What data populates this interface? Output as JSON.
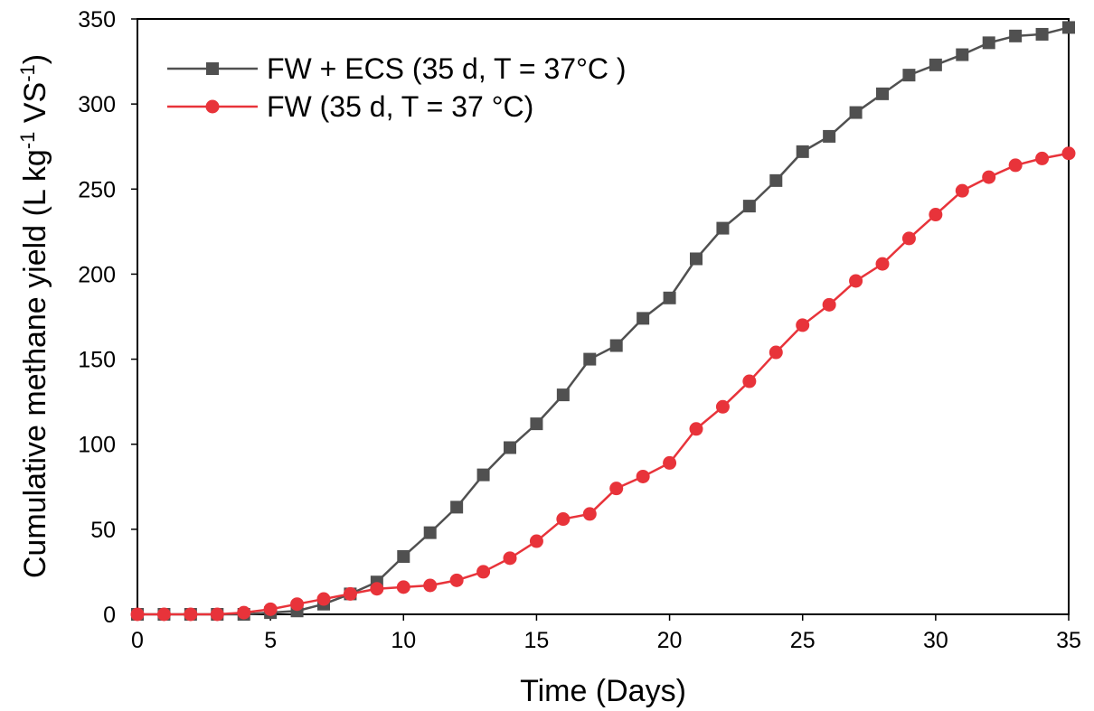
{
  "chart_data": {
    "type": "line",
    "xlabel": "Time (Days)",
    "ylabel": {
      "main": "Cumulative methane yield (L kg",
      "sup1": "-1",
      "mid": " VS",
      "sup2": "-1",
      "end": ")"
    },
    "xlim": [
      0,
      35
    ],
    "ylim": [
      0,
      350
    ],
    "xticks": [
      "0",
      "5",
      "10",
      "15",
      "20",
      "25",
      "30",
      "35"
    ],
    "yticks": [
      "0",
      "50",
      "100",
      "150",
      "200",
      "250",
      "300",
      "350"
    ],
    "grid": false,
    "legend_position": "top-left",
    "x": [
      0,
      1,
      2,
      3,
      4,
      5,
      6,
      7,
      8,
      9,
      10,
      11,
      12,
      13,
      14,
      15,
      16,
      17,
      18,
      19,
      20,
      21,
      22,
      23,
      24,
      25,
      26,
      27,
      28,
      29,
      30,
      31,
      32,
      33,
      34,
      35
    ],
    "series": [
      {
        "name": "FW + ECS (35 d, T = 37°C )",
        "color": "#505050",
        "marker": "square",
        "values": [
          0,
          0,
          0,
          0,
          0,
          1,
          2,
          6,
          12,
          19,
          34,
          48,
          63,
          82,
          98,
          112,
          129,
          150,
          158,
          174,
          186,
          209,
          227,
          240,
          255,
          272,
          281,
          295,
          306,
          317,
          323,
          329,
          336,
          340,
          341,
          345
        ]
      },
      {
        "name": "FW (35 d, T = 37 °C)",
        "color": "#e8333a",
        "marker": "circle",
        "values": [
          0,
          0,
          0,
          0,
          1,
          3,
          6,
          9,
          12,
          15,
          16,
          17,
          20,
          25,
          33,
          43,
          56,
          59,
          74,
          81,
          89,
          109,
          122,
          137,
          154,
          170,
          182,
          196,
          206,
          221,
          235,
          249,
          257,
          264,
          268,
          271
        ]
      }
    ]
  }
}
